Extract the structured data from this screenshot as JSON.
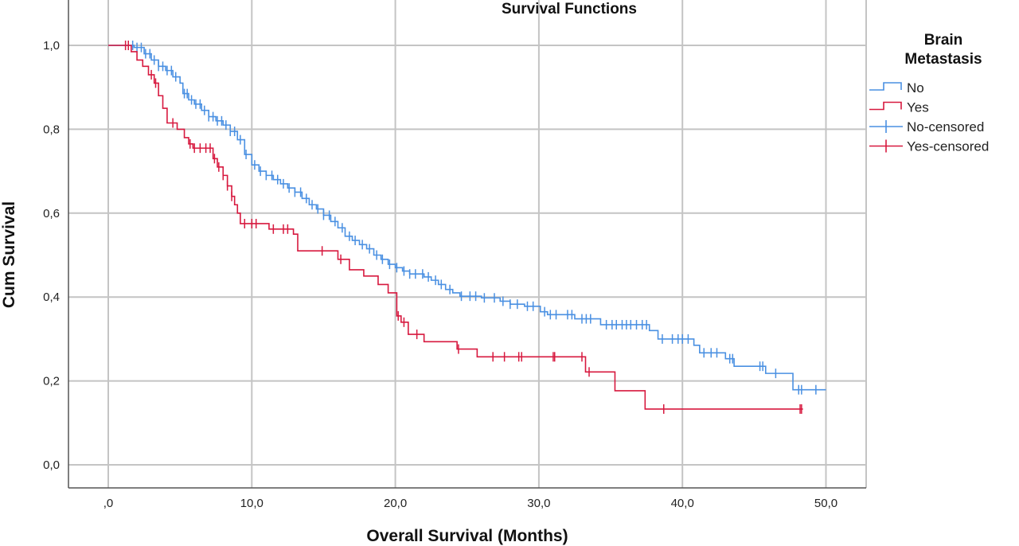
{
  "chart_data": {
    "type": "line",
    "title": "Survival Functions",
    "xlabel": "Overall Survival (Months)",
    "ylabel": "Cum Survival",
    "xlim": [
      -2.8,
      52.8
    ],
    "ylim": [
      0,
      1
    ],
    "x_ticks": [
      ",0",
      "10,0",
      "20,0",
      "30,0",
      "40,0",
      "50,0"
    ],
    "x_tick_values": [
      0,
      10,
      20,
      30,
      40,
      50
    ],
    "y_ticks": [
      "0,0",
      "0,2",
      "0,4",
      "0,6",
      "0,8",
      "1,0"
    ],
    "y_tick_values": [
      0,
      0.2,
      0.4,
      0.6,
      0.8,
      1.0
    ],
    "grid": true,
    "step": true,
    "legend": {
      "title": "Brain Metastasis",
      "position": "right",
      "entries": [
        "No",
        "Yes",
        "No-censored",
        "Yes-censored"
      ]
    },
    "series": [
      {
        "name": "No",
        "color": "#4a90e2",
        "steps": [
          [
            0,
            1
          ],
          [
            1.8,
            0.995
          ],
          [
            2.5,
            0.98
          ],
          [
            3,
            0.965
          ],
          [
            3.5,
            0.95
          ],
          [
            4,
            0.94
          ],
          [
            4.5,
            0.925
          ],
          [
            5,
            0.91
          ],
          [
            5.2,
            0.885
          ],
          [
            5.6,
            0.87
          ],
          [
            6,
            0.86
          ],
          [
            6.5,
            0.845
          ],
          [
            7,
            0.83
          ],
          [
            7.5,
            0.82
          ],
          [
            8,
            0.81
          ],
          [
            8.5,
            0.795
          ],
          [
            9,
            0.775
          ],
          [
            9.5,
            0.74
          ],
          [
            10,
            0.715
          ],
          [
            10.5,
            0.7
          ],
          [
            11,
            0.69
          ],
          [
            11.5,
            0.68
          ],
          [
            12,
            0.67
          ],
          [
            12.5,
            0.66
          ],
          [
            13,
            0.65
          ],
          [
            13.5,
            0.635
          ],
          [
            14,
            0.62
          ],
          [
            14.5,
            0.61
          ],
          [
            15,
            0.595
          ],
          [
            15.5,
            0.58
          ],
          [
            16,
            0.565
          ],
          [
            16.5,
            0.545
          ],
          [
            17,
            0.535
          ],
          [
            17.5,
            0.525
          ],
          [
            18,
            0.515
          ],
          [
            18.5,
            0.5
          ],
          [
            19,
            0.49
          ],
          [
            19.5,
            0.478
          ],
          [
            20,
            0.47
          ],
          [
            20.5,
            0.462
          ],
          [
            21,
            0.455
          ],
          [
            22,
            0.448
          ],
          [
            22.5,
            0.44
          ],
          [
            23,
            0.43
          ],
          [
            23.5,
            0.418
          ],
          [
            24,
            0.41
          ],
          [
            24.5,
            0.402
          ],
          [
            26,
            0.398
          ],
          [
            27.3,
            0.39
          ],
          [
            28,
            0.383
          ],
          [
            29,
            0.378
          ],
          [
            30.1,
            0.365
          ],
          [
            30.6,
            0.358
          ],
          [
            32.5,
            0.348
          ],
          [
            34.3,
            0.334
          ],
          [
            37.7,
            0.32
          ],
          [
            38.3,
            0.3
          ],
          [
            40.8,
            0.285
          ],
          [
            41.2,
            0.267
          ],
          [
            43,
            0.253
          ],
          [
            43.6,
            0.235
          ],
          [
            45.8,
            0.218
          ],
          [
            47.7,
            0.179
          ]
        ],
        "end": 50,
        "censored": [
          1.7,
          2.0,
          2.3,
          2.6,
          2.9,
          3.2,
          3.5,
          3.8,
          4.1,
          4.4,
          4.7,
          5.3,
          5.5,
          5.8,
          6.1,
          6.4,
          6.7,
          7.0,
          7.3,
          7.6,
          7.9,
          8.2,
          8.5,
          8.8,
          9.2,
          9.6,
          10.2,
          10.6,
          11.0,
          11.4,
          11.8,
          12.2,
          12.6,
          13.0,
          13.4,
          13.8,
          14.2,
          14.6,
          15.0,
          15.4,
          15.8,
          16.3,
          16.8,
          17.2,
          17.7,
          18.2,
          18.7,
          19.1,
          19.6,
          20.1,
          20.6,
          21.0,
          21.4,
          21.9,
          22.3,
          22.8,
          23.2,
          23.8,
          24.6,
          25.2,
          25.6,
          26.2,
          26.9,
          27.5,
          28.0,
          28.5,
          29.2,
          29.6,
          30.4,
          30.8,
          31.2,
          32.0,
          32.3,
          33.0,
          33.3,
          33.6,
          34.7,
          35.1,
          35.4,
          35.8,
          36.1,
          36.4,
          36.8,
          37.2,
          37.5,
          38.6,
          39.3,
          39.7,
          40.0,
          40.4,
          41.5,
          42.0,
          42.4,
          43.3,
          43.5,
          45.4,
          45.6,
          46.5,
          48.1,
          48.3,
          49.3
        ]
      },
      {
        "name": "Yes",
        "color": "#d7193f",
        "steps": [
          [
            0,
            1
          ],
          [
            1.6,
            0.985
          ],
          [
            2,
            0.965
          ],
          [
            2.4,
            0.95
          ],
          [
            2.8,
            0.93
          ],
          [
            3.2,
            0.91
          ],
          [
            3.5,
            0.88
          ],
          [
            3.8,
            0.85
          ],
          [
            4.1,
            0.815
          ],
          [
            4.8,
            0.8
          ],
          [
            5.3,
            0.78
          ],
          [
            5.6,
            0.765
          ],
          [
            5.9,
            0.755
          ],
          [
            7.3,
            0.73
          ],
          [
            7.6,
            0.71
          ],
          [
            8,
            0.69
          ],
          [
            8.3,
            0.665
          ],
          [
            8.6,
            0.64
          ],
          [
            8.8,
            0.62
          ],
          [
            9,
            0.6
          ],
          [
            9.2,
            0.575
          ],
          [
            11.2,
            0.562
          ],
          [
            12.9,
            0.55
          ],
          [
            13.2,
            0.51
          ],
          [
            16,
            0.49
          ],
          [
            16.8,
            0.465
          ],
          [
            17.8,
            0.45
          ],
          [
            18.8,
            0.43
          ],
          [
            19.5,
            0.41
          ],
          [
            20.1,
            0.355
          ],
          [
            20.4,
            0.34
          ],
          [
            20.9,
            0.311
          ],
          [
            22,
            0.2935
          ],
          [
            24.3,
            0.276
          ],
          [
            25.7,
            0.2575
          ],
          [
            33.25,
            0.2214
          ],
          [
            35.3,
            0.1765
          ],
          [
            37.4,
            0.133
          ]
        ],
        "end": 48.4,
        "censored": [
          1.2,
          1.4,
          3.0,
          3.3,
          4.5,
          5.7,
          6.0,
          6.4,
          6.8,
          7.1,
          7.4,
          7.7,
          8.0,
          8.3,
          8.6,
          9.5,
          10.0,
          10.3,
          11.5,
          12.2,
          12.5,
          14.9,
          16.2,
          20.2,
          20.6,
          21.5,
          24.4,
          26.8,
          27.6,
          28.6,
          28.8,
          31.0,
          31.1,
          33.0,
          33.5,
          38.7,
          48.2,
          48.3
        ]
      }
    ]
  }
}
